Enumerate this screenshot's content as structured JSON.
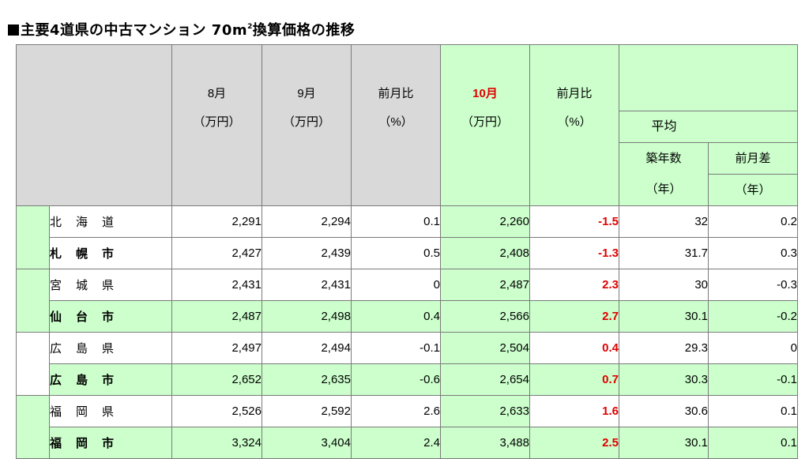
{
  "title": {
    "prefix": "■",
    "main": "主要4道県の中古マンション 70m",
    "sup": "2",
    "suffix": "換算価格の推移"
  },
  "headers": {
    "aug": "8月",
    "sep": "9月",
    "prev_ratio_1": "前月比",
    "oct": "10月",
    "prev_ratio_2": "前月比",
    "avg": "平均",
    "age": "築年数",
    "prev_diff": "前月差",
    "unit_yen": "（万円）",
    "unit_pct": "（%）",
    "unit_year": "（年）"
  },
  "rows": [
    {
      "name": "北海道",
      "aug": "2,291",
      "sep": "2,294",
      "r1": "0.1",
      "oct": "2,260",
      "r2": "-1.5",
      "age": "32",
      "diff": "0.2"
    },
    {
      "name": "札幌市",
      "aug": "2,427",
      "sep": "2,439",
      "r1": "0.5",
      "oct": "2,408",
      "r2": "-1.3",
      "age": "31.7",
      "diff": "0.3"
    },
    {
      "name": "宮城県",
      "aug": "2,431",
      "sep": "2,431",
      "r1": "0",
      "oct": "2,487",
      "r2": "2.3",
      "age": "30",
      "diff": "-0.3"
    },
    {
      "name": "仙台市",
      "aug": "2,487",
      "sep": "2,498",
      "r1": "0.4",
      "oct": "2,566",
      "r2": "2.7",
      "age": "30.1",
      "diff": "-0.2"
    },
    {
      "name": "広島県",
      "aug": "2,497",
      "sep": "2,494",
      "r1": "-0.1",
      "oct": "2,504",
      "r2": "0.4",
      "age": "29.3",
      "diff": "0"
    },
    {
      "name": "広島市",
      "aug": "2,652",
      "sep": "2,635",
      "r1": "-0.6",
      "oct": "2,654",
      "r2": "0.7",
      "age": "30.3",
      "diff": "-0.1"
    },
    {
      "name": "福岡県",
      "aug": "2,526",
      "sep": "2,592",
      "r1": "2.6",
      "oct": "2,633",
      "r2": "1.6",
      "age": "30.6",
      "diff": "0.1"
    },
    {
      "name": "福岡市",
      "aug": "3,324",
      "sep": "3,404",
      "r1": "2.4",
      "oct": "3,488",
      "r2": "2.5",
      "age": "30.1",
      "diff": "0.1"
    }
  ],
  "colors": {
    "header_gray": "#d9d9d9",
    "green": "#ccffcc",
    "highlight_red": "#e00000",
    "border": "#7a7a7a"
  }
}
